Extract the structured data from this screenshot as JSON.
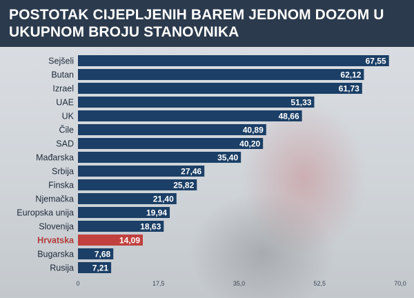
{
  "title": "POSTOTAK CIJEPLJENIH BAREM JEDNOM DOZOM U UKUPNOM BROJU STANOVNIKA",
  "colors": {
    "bar": "#1b3f66",
    "highlight_bar": "#c0413e",
    "highlight_label": "#b23a37",
    "label": "#1e2a38",
    "header_bg": "#2b3a4d"
  },
  "chart_data": {
    "type": "bar",
    "orientation": "horizontal",
    "categories": [
      "Sejšeli",
      "Butan",
      "Izrael",
      "UAE",
      "UK",
      "Čile",
      "SAD",
      "Mađarska",
      "Srbija",
      "Finska",
      "Njemačka",
      "Europska unija",
      "Slovenija",
      "Hrvatska",
      "Bugarska",
      "Rusija"
    ],
    "values": [
      67.55,
      62.12,
      61.73,
      51.33,
      48.66,
      40.89,
      40.2,
      35.4,
      27.46,
      25.82,
      21.4,
      19.94,
      18.63,
      14.09,
      7.68,
      7.21
    ],
    "value_labels": [
      "67,55",
      "62,12",
      "61,73",
      "51,33",
      "48,66",
      "40,89",
      "40,20",
      "35,40",
      "27,46",
      "25,82",
      "21,40",
      "19,94",
      "18,63",
      "14,09",
      "7,68",
      "7,21"
    ],
    "highlight": "Hrvatska",
    "xlim": [
      0,
      70
    ],
    "xticks": [
      0,
      17.5,
      35,
      52.5,
      70
    ],
    "xtick_labels": [
      "0",
      "17,5",
      "35,0",
      "52,5",
      "70,0"
    ],
    "grid": false
  }
}
